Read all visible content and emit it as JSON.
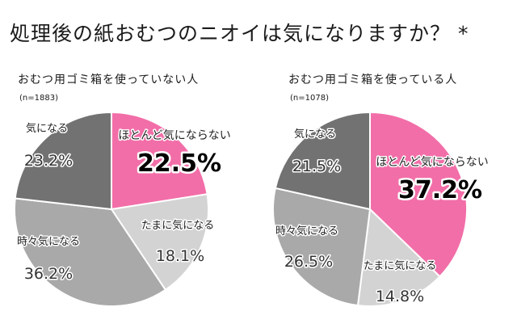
{
  "title": "処理後の紙おむつのニオイは気になりますか？ *",
  "chart_data": [
    {
      "type": "pie",
      "subtitle": "おむつ用ゴミ箱を使っていない人",
      "n_label": "(n=1883)",
      "unit": "%",
      "categories": [
        "ほとんど気にならない",
        "たまに気になる",
        "時々気になる",
        "気になる"
      ],
      "values": [
        22.5,
        18.1,
        36.2,
        23.2
      ],
      "value_labels": [
        "22.5%",
        "18.1%",
        "36.2%",
        "23.2%"
      ],
      "colors": [
        "#f26ea8",
        "#d3d3d3",
        "#a9a9a9",
        "#727272"
      ],
      "start": "12 o'clock",
      "direction": "clockwise"
    },
    {
      "type": "pie",
      "subtitle": "おむつ用ゴミ箱を使っている人",
      "n_label": "(n=1078)",
      "unit": "%",
      "categories": [
        "ほとんど気にならない",
        "たまに気になる",
        "時々気になる",
        "気になる"
      ],
      "values": [
        37.2,
        14.8,
        26.5,
        21.5
      ],
      "value_labels": [
        "37.2%",
        "14.8%",
        "26.5%",
        "21.5%"
      ],
      "colors": [
        "#f26ea8",
        "#d3d3d3",
        "#a9a9a9",
        "#727272"
      ],
      "start": "12 o'clock",
      "direction": "clockwise"
    }
  ]
}
